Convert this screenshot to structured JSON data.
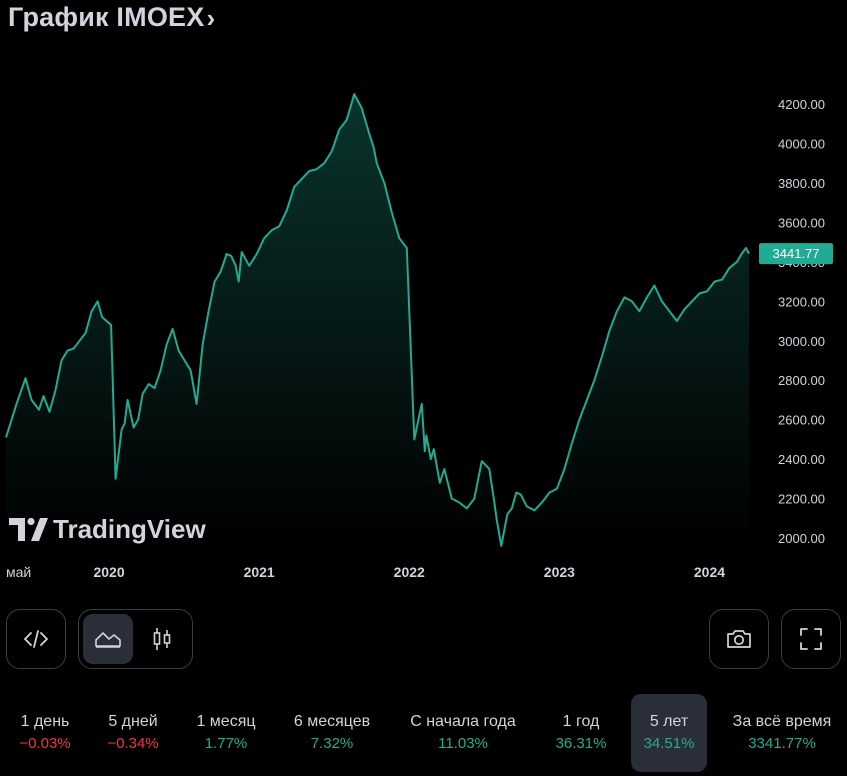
{
  "header": {
    "title": "График IMOEX",
    "chevron": "›"
  },
  "colors": {
    "line": "#22ab94",
    "negative": "#f23645",
    "positive": "#22ab94",
    "price_tag_bg": "#22ab94"
  },
  "watermark": {
    "text": "TradingView",
    "icon": "tradingview-logo-icon"
  },
  "chart_data": {
    "type": "area",
    "title": "График IMOEX",
    "ylim": [
      1950,
      4300
    ],
    "y_ticks": [
      2000,
      2200,
      2400,
      2600,
      2800,
      3000,
      3200,
      3400,
      3600,
      3800,
      4000,
      4200
    ],
    "y_tick_labels": [
      "2000.00",
      "2200.00",
      "2400.00",
      "2600.00",
      "2800.00",
      "3000.00",
      "3200.00",
      "3400.00",
      "3600.00",
      "3800.00",
      "4000.00",
      "4200.00"
    ],
    "x_labels": [
      "май",
      "2020",
      "2021",
      "2022",
      "2023",
      "2024"
    ],
    "x_label_years": [
      2019.36,
      2019.95,
      2020.95,
      2021.95,
      2022.95,
      2023.95
    ],
    "xlim": [
      2019.33,
      2024.3
    ],
    "last_price": 3441.77,
    "last_price_label": "3441.77",
    "series": [
      {
        "name": "IMOEX",
        "x": [
          2019.33,
          2019.4,
          2019.46,
          2019.5,
          2019.55,
          2019.58,
          2019.62,
          2019.66,
          2019.7,
          2019.74,
          2019.78,
          2019.82,
          2019.86,
          2019.9,
          2019.94,
          2019.97,
          2020.0,
          2020.03,
          2020.06,
          2020.1,
          2020.12,
          2020.14,
          2020.18,
          2020.21,
          2020.24,
          2020.28,
          2020.32,
          2020.36,
          2020.4,
          2020.44,
          2020.48,
          2020.52,
          2020.56,
          2020.6,
          2020.64,
          2020.68,
          2020.72,
          2020.76,
          2020.8,
          2020.83,
          2020.86,
          2020.88,
          2020.9,
          2020.95,
          2021.0,
          2021.05,
          2021.1,
          2021.15,
          2021.2,
          2021.25,
          2021.3,
          2021.35,
          2021.4,
          2021.45,
          2021.5,
          2021.55,
          2021.6,
          2021.65,
          2021.7,
          2021.75,
          2021.78,
          2021.8,
          2021.85,
          2021.9,
          2021.95,
          2022.0,
          2022.05,
          2022.08,
          2022.1,
          2022.12,
          2022.13,
          2022.16,
          2022.18,
          2022.22,
          2022.25,
          2022.3,
          2022.35,
          2022.4,
          2022.45,
          2022.5,
          2022.55,
          2022.58,
          2022.6,
          2022.63,
          2022.67,
          2022.7,
          2022.73,
          2022.76,
          2022.8,
          2022.85,
          2022.9,
          2022.95,
          2023.0,
          2023.05,
          2023.1,
          2023.15,
          2023.2,
          2023.25,
          2023.3,
          2023.35,
          2023.4,
          2023.45,
          2023.5,
          2023.55,
          2023.6,
          2023.65,
          2023.7,
          2023.75,
          2023.8,
          2023.85,
          2023.9,
          2023.95,
          2024.0,
          2024.05,
          2024.1,
          2024.15,
          2024.2,
          2024.23,
          2024.26,
          2024.28
        ],
        "values": [
          2510,
          2680,
          2810,
          2700,
          2650,
          2720,
          2640,
          2750,
          2900,
          2950,
          2960,
          3000,
          3040,
          3150,
          3200,
          3120,
          3100,
          3080,
          2300,
          2550,
          2580,
          2700,
          2560,
          2600,
          2730,
          2780,
          2760,
          2850,
          2980,
          3060,
          2950,
          2900,
          2850,
          2680,
          2980,
          3150,
          3300,
          3350,
          3440,
          3430,
          3380,
          3300,
          3450,
          3380,
          3440,
          3520,
          3560,
          3580,
          3660,
          3780,
          3820,
          3860,
          3870,
          3900,
          3960,
          4070,
          4120,
          4250,
          4180,
          4050,
          3980,
          3900,
          3800,
          3650,
          3520,
          3470,
          2500,
          2610,
          2680,
          2440,
          2520,
          2400,
          2450,
          2280,
          2350,
          2200,
          2180,
          2150,
          2200,
          2390,
          2350,
          2200,
          2090,
          1960,
          2120,
          2150,
          2230,
          2220,
          2160,
          2140,
          2180,
          2230,
          2250,
          2350,
          2480,
          2600,
          2700,
          2800,
          2920,
          3050,
          3150,
          3220,
          3200,
          3150,
          3220,
          3280,
          3200,
          3150,
          3100,
          3160,
          3200,
          3240,
          3250,
          3300,
          3310,
          3370,
          3400,
          3440,
          3470,
          3442
        ]
      }
    ]
  },
  "controls": {
    "embed": "code-embed-icon",
    "area_chart": "area-chart-icon",
    "candles": "candlestick-icon",
    "camera": "camera-icon",
    "fullscreen": "fullscreen-icon"
  },
  "ranges": [
    {
      "label": "1 день",
      "value": "−0.03%",
      "dir": "neg"
    },
    {
      "label": "5 дней",
      "value": "−0.34%",
      "dir": "neg"
    },
    {
      "label": "1 месяц",
      "value": "1.77%",
      "dir": "pos"
    },
    {
      "label": "6 месяцев",
      "value": "7.32%",
      "dir": "pos"
    },
    {
      "label": "С начала года",
      "value": "11.03%",
      "dir": "pos"
    },
    {
      "label": "1 год",
      "value": "36.31%",
      "dir": "pos"
    },
    {
      "label": "5 лет",
      "value": "34.51%",
      "dir": "pos",
      "active": true
    },
    {
      "label": "За всё время",
      "value": "3341.77%",
      "dir": "pos"
    }
  ]
}
